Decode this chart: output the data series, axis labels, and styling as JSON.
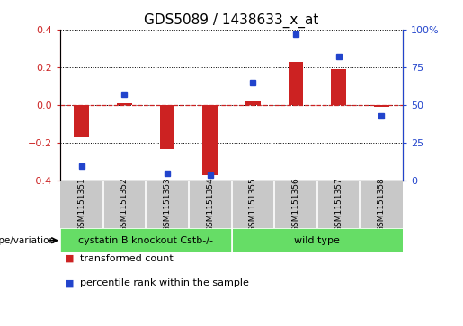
{
  "title": "GDS5089 / 1438633_x_at",
  "samples": [
    "GSM1151351",
    "GSM1151352",
    "GSM1151353",
    "GSM1151354",
    "GSM1151355",
    "GSM1151356",
    "GSM1151357",
    "GSM1151358"
  ],
  "red_values": [
    -0.17,
    0.01,
    -0.23,
    -0.37,
    0.02,
    0.23,
    0.19,
    -0.01
  ],
  "blue_values": [
    10,
    57,
    5,
    4,
    65,
    97,
    82,
    43
  ],
  "ylim_left": [
    -0.4,
    0.4
  ],
  "ylim_right": [
    0,
    100
  ],
  "yticks_left": [
    -0.4,
    -0.2,
    0.0,
    0.2,
    0.4
  ],
  "yticks_right": [
    0,
    25,
    50,
    75,
    100
  ],
  "ytick_labels_right": [
    "0",
    "25",
    "50",
    "75",
    "100%"
  ],
  "group_divider": 3.5,
  "bar_color": "#cc2222",
  "dot_color": "#2244cc",
  "background_color": "#ffffff",
  "plot_bg_color": "#ffffff",
  "grid_color": "#000000",
  "zero_line_color": "#cc2222",
  "green_color": "#66dd66",
  "gray_color": "#c8c8c8",
  "legend_items": [
    {
      "label": "transformed count",
      "color": "#cc2222"
    },
    {
      "label": "percentile rank within the sample",
      "color": "#2244cc"
    }
  ],
  "genotype_label": "genotype/variation",
  "title_fontsize": 11,
  "tick_fontsize": 8,
  "sample_fontsize": 6.5,
  "group_fontsize": 8,
  "legend_fontsize": 8
}
